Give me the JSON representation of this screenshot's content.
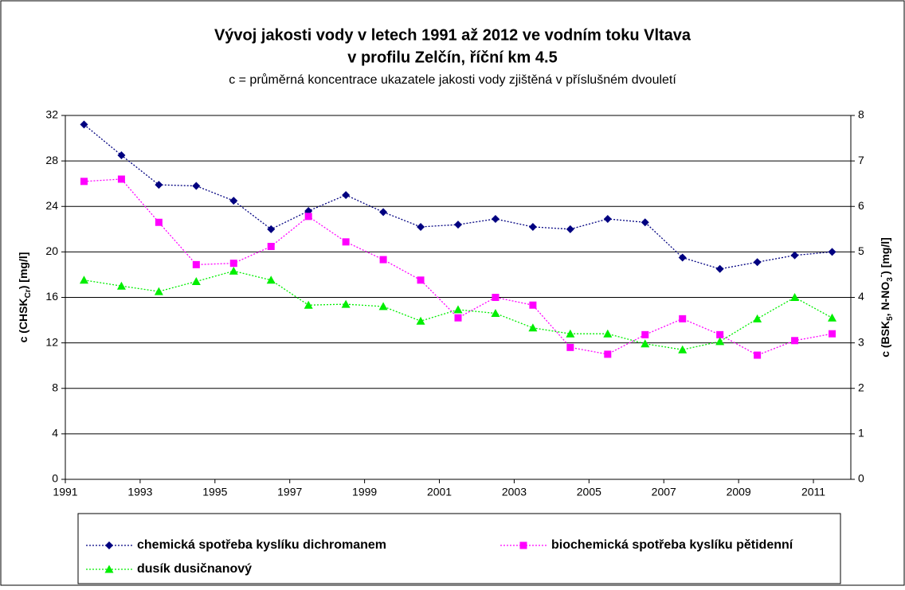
{
  "chart_data": {
    "type": "line",
    "title": [
      "Vývoj jakosti vody v letech 1991 až 2012 ve vodním toku Vltava",
      "v profilu Zelčín, říční km 4.5"
    ],
    "subtitle": "c = průměrná koncentrace ukazatele jakosti vody zjištěná v příslušném dvouletí",
    "ylabel": [
      {
        "text": "c (CHSK"
      },
      {
        "text": "Cr",
        "shift": "sub"
      },
      {
        "text": ") [mg/l]"
      }
    ],
    "y2label": [
      {
        "text": "c (BSK"
      },
      {
        "text": "5",
        "shift": "sub"
      },
      {
        "text": ", N-NO"
      },
      {
        "text": "3",
        "shift": "sub"
      },
      {
        "text": "-",
        "shift": "super"
      },
      {
        "text": ") [mg/l]"
      }
    ],
    "x": [
      1991.5,
      1992.5,
      1993.5,
      1994.5,
      1995.5,
      1996.5,
      1997.5,
      1998.5,
      1999.5,
      2000.5,
      2001.5,
      2002.5,
      2003.5,
      2004.5,
      2005.5,
      2006.5,
      2007.5,
      2008.5,
      2009.5,
      2010.5,
      2011.5
    ],
    "xlim": [
      1991,
      2012
    ],
    "xticks": [
      1991,
      1993,
      1995,
      1997,
      1999,
      2001,
      2003,
      2005,
      2007,
      2009,
      2011
    ],
    "ylim": [
      0,
      32
    ],
    "yticks": [
      0,
      4,
      8,
      12,
      16,
      20,
      24,
      28,
      32
    ],
    "y2lim": [
      0,
      8
    ],
    "y2ticks": [
      0,
      1,
      2,
      3,
      4,
      5,
      6,
      7,
      8
    ],
    "grid": true,
    "series": [
      {
        "name": "chemická spotřeba kyslíku dichromanem",
        "color": "#000080",
        "marker": "diamond",
        "values": [
          31.2,
          28.5,
          25.9,
          25.8,
          24.5,
          22.0,
          23.6,
          25.0,
          23.5,
          22.2,
          22.4,
          22.9,
          22.2,
          22.0,
          22.9,
          22.6,
          19.5,
          18.5,
          19.1,
          19.7,
          20.0
        ]
      },
      {
        "name": "biochemická spotřeba kyslíku pětidenní",
        "color": "#ff00ff",
        "marker": "square",
        "axis": "y2",
        "values": [
          6.55,
          6.6,
          5.65,
          4.72,
          4.75,
          5.12,
          5.78,
          5.22,
          4.83,
          4.38,
          3.55,
          4.0,
          3.83,
          2.9,
          2.75,
          3.18,
          3.53,
          3.18,
          2.73,
          3.05,
          3.2
        ]
      },
      {
        "name": "dusík dusičnanový",
        "color": "#00ee00",
        "marker": "triangle",
        "axis": "y2",
        "values": [
          4.38,
          4.25,
          4.13,
          4.35,
          4.58,
          4.38,
          3.83,
          3.85,
          3.8,
          3.48,
          3.73,
          3.65,
          3.33,
          3.2,
          3.2,
          2.98,
          2.85,
          3.03,
          3.53,
          4.0,
          3.55
        ]
      }
    ]
  }
}
